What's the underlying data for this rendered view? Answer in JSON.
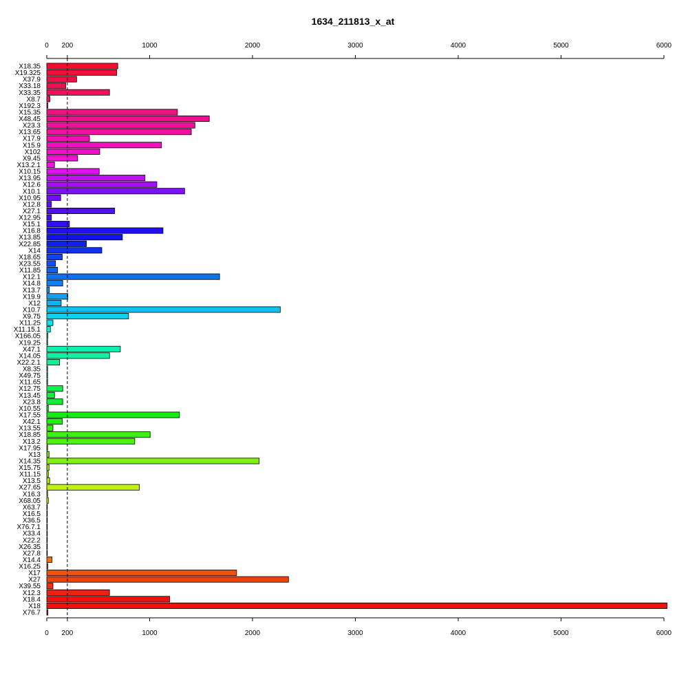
{
  "chart_data": {
    "type": "bar",
    "orientation": "horizontal",
    "title": "1634_211813_x_at",
    "xlabel": "",
    "ylabel": "",
    "xlim": [
      0,
      6000
    ],
    "x_ticks": [
      0,
      200,
      1000,
      2000,
      3000,
      4000,
      5000,
      6000
    ],
    "x_tick_labels": [
      "0",
      "200",
      "1000",
      "2000",
      "3000",
      "4000",
      "5000",
      "6000"
    ],
    "reference_line": 200,
    "grid": false,
    "legend": "none",
    "categories": [
      "X18.35",
      "X19.325",
      "X37.9",
      "X33.18",
      "X33.35",
      "X8.7",
      "X192.3",
      "X15.35",
      "X48.45",
      "X23.3",
      "X13.65",
      "X17.9",
      "X15.9",
      "X102",
      "X9.45",
      "X13.2.1",
      "X10.15",
      "X13.95",
      "X12.6",
      "X10.1",
      "X10.95",
      "X12.8",
      "X27.1",
      "X12.95",
      "X15.1",
      "X16.8",
      "X13.85",
      "X22.85",
      "X14",
      "X18.65",
      "X23.55",
      "X11.85",
      "X12.1",
      "X14.8",
      "X13.7",
      "X19.9",
      "X12",
      "X10.7",
      "X9.75",
      "X11.25",
      "X11.15.1",
      "X166.05",
      "X19.25",
      "X47.1",
      "X14.05",
      "X22.2.1",
      "X8.35",
      "X49.75",
      "X11.65",
      "X12.75",
      "X13.45",
      "X23.8",
      "X10.55",
      "X17.55",
      "X42.1",
      "X13.55",
      "X18.85",
      "X13.2",
      "X17.95",
      "X13",
      "X14.35",
      "X15.75",
      "X11.15",
      "X13.5",
      "X27.65",
      "X16.3",
      "X68.05",
      "X63.7",
      "X16.5",
      "X36.5",
      "X76.7.1",
      "X33.4",
      "X22.2",
      "X26.35",
      "X27.8",
      "X14.4",
      "X16.25",
      "X17",
      "X27",
      "X39.55",
      "X12.3",
      "X18.4",
      "X18",
      "X76.7"
    ],
    "values": [
      690,
      680,
      290,
      185,
      610,
      30,
      10,
      1270,
      1580,
      1440,
      1405,
      415,
      1115,
      515,
      300,
      75,
      510,
      955,
      1070,
      1340,
      135,
      45,
      660,
      45,
      220,
      1130,
      735,
      385,
      535,
      150,
      85,
      105,
      1680,
      155,
      25,
      205,
      140,
      2270,
      795,
      60,
      35,
      10,
      8,
      715,
      610,
      125,
      8,
      8,
      8,
      155,
      75,
      155,
      15,
      1290,
      150,
      60,
      1005,
      855,
      8,
      22,
      2065,
      22,
      15,
      28,
      900,
      8,
      15,
      5,
      5,
      5,
      5,
      5,
      5,
      5,
      5,
      50,
      10,
      1845,
      2350,
      60,
      610,
      1195,
      6030,
      10
    ],
    "colors": [
      "#F0102E",
      "#F0103A",
      "#F01046",
      "#F01052",
      "#F0105E",
      "#F0106A",
      "#F01076",
      "#F01082",
      "#F0108E",
      "#F0109A",
      "#F010A6",
      "#F010B2",
      "#F010BE",
      "#F010CA",
      "#F010D6",
      "#F010E2",
      "#E010F0",
      "#C010F0",
      "#A010F0",
      "#8010F0",
      "#7010F0",
      "#6010F0",
      "#5010F0",
      "#4010F0",
      "#3010F0",
      "#2010F0",
      "#1010F0",
      "#1020F0",
      "#1030F0",
      "#1040F0",
      "#1050F0",
      "#1060F0",
      "#1070F0",
      "#1080F0",
      "#1090F0",
      "#10A0F0",
      "#10B0F0",
      "#10C0F0",
      "#10D0F0",
      "#10E0F0",
      "#10F0E0",
      "#10F0D0",
      "#10F0C0",
      "#10F0B0",
      "#10F0A0",
      "#10F090",
      "#10F080",
      "#10F070",
      "#10F060",
      "#10F050",
      "#10F040",
      "#10F030",
      "#10F020",
      "#10F010",
      "#20F010",
      "#30F010",
      "#40F010",
      "#50F010",
      "#60F010",
      "#70F010",
      "#80F010",
      "#90F010",
      "#A0F010",
      "#B0F010",
      "#C0F010",
      "#D0F010",
      "#E0F010",
      "#F0F010",
      "#F0E010",
      "#F0D010",
      "#F0C010",
      "#F0B010",
      "#F0A010",
      "#F09010",
      "#F08010",
      "#F07010",
      "#F06010",
      "#F05010",
      "#F04010",
      "#F03010",
      "#F02010",
      "#F01010",
      "#F01010",
      "#F01010"
    ]
  }
}
